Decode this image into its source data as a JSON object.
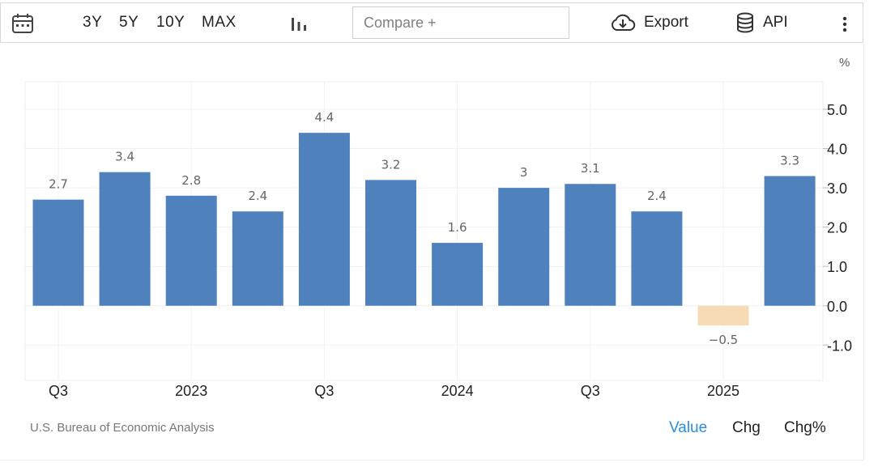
{
  "toolbar": {
    "ranges": [
      "3Y",
      "5Y",
      "10Y",
      "MAX"
    ],
    "compare_placeholder": "Compare +",
    "export_label": "Export",
    "api_label": "API"
  },
  "colors": {
    "positive_bar": "#4f81bd",
    "negative_bar": "#f5dcb4",
    "active_toggle": "#2b8ed8"
  },
  "chart_data": {
    "type": "bar",
    "unit_label": "%",
    "x_tick_labels": [
      "Q3",
      "",
      "2023",
      "",
      "Q3",
      "",
      "2024",
      "",
      "Q3",
      "",
      "2025",
      ""
    ],
    "values": [
      2.7,
      3.4,
      2.8,
      2.4,
      4.4,
      3.2,
      1.6,
      3,
      3.1,
      2.4,
      -0.5,
      3.3
    ],
    "value_labels": [
      "2.7",
      "3.4",
      "2.8",
      "2.4",
      "4.4",
      "3.2",
      "1.6",
      "3",
      "3.1",
      "2.4",
      "−0.5",
      "3.3"
    ],
    "y_ticks": [
      5,
      4,
      3,
      2,
      1,
      0,
      -1
    ],
    "y_tick_labels": [
      "5.0",
      "4.0",
      "3.0",
      "2.0",
      "1.0",
      "0.0",
      "-1.0"
    ],
    "ylim": [
      -1.9,
      5.7
    ],
    "y_axis_position": "right",
    "grid": true
  },
  "footer": {
    "source": "U.S. Bureau of Economic Analysis",
    "toggles": [
      "Value",
      "Chg",
      "Chg%"
    ]
  }
}
